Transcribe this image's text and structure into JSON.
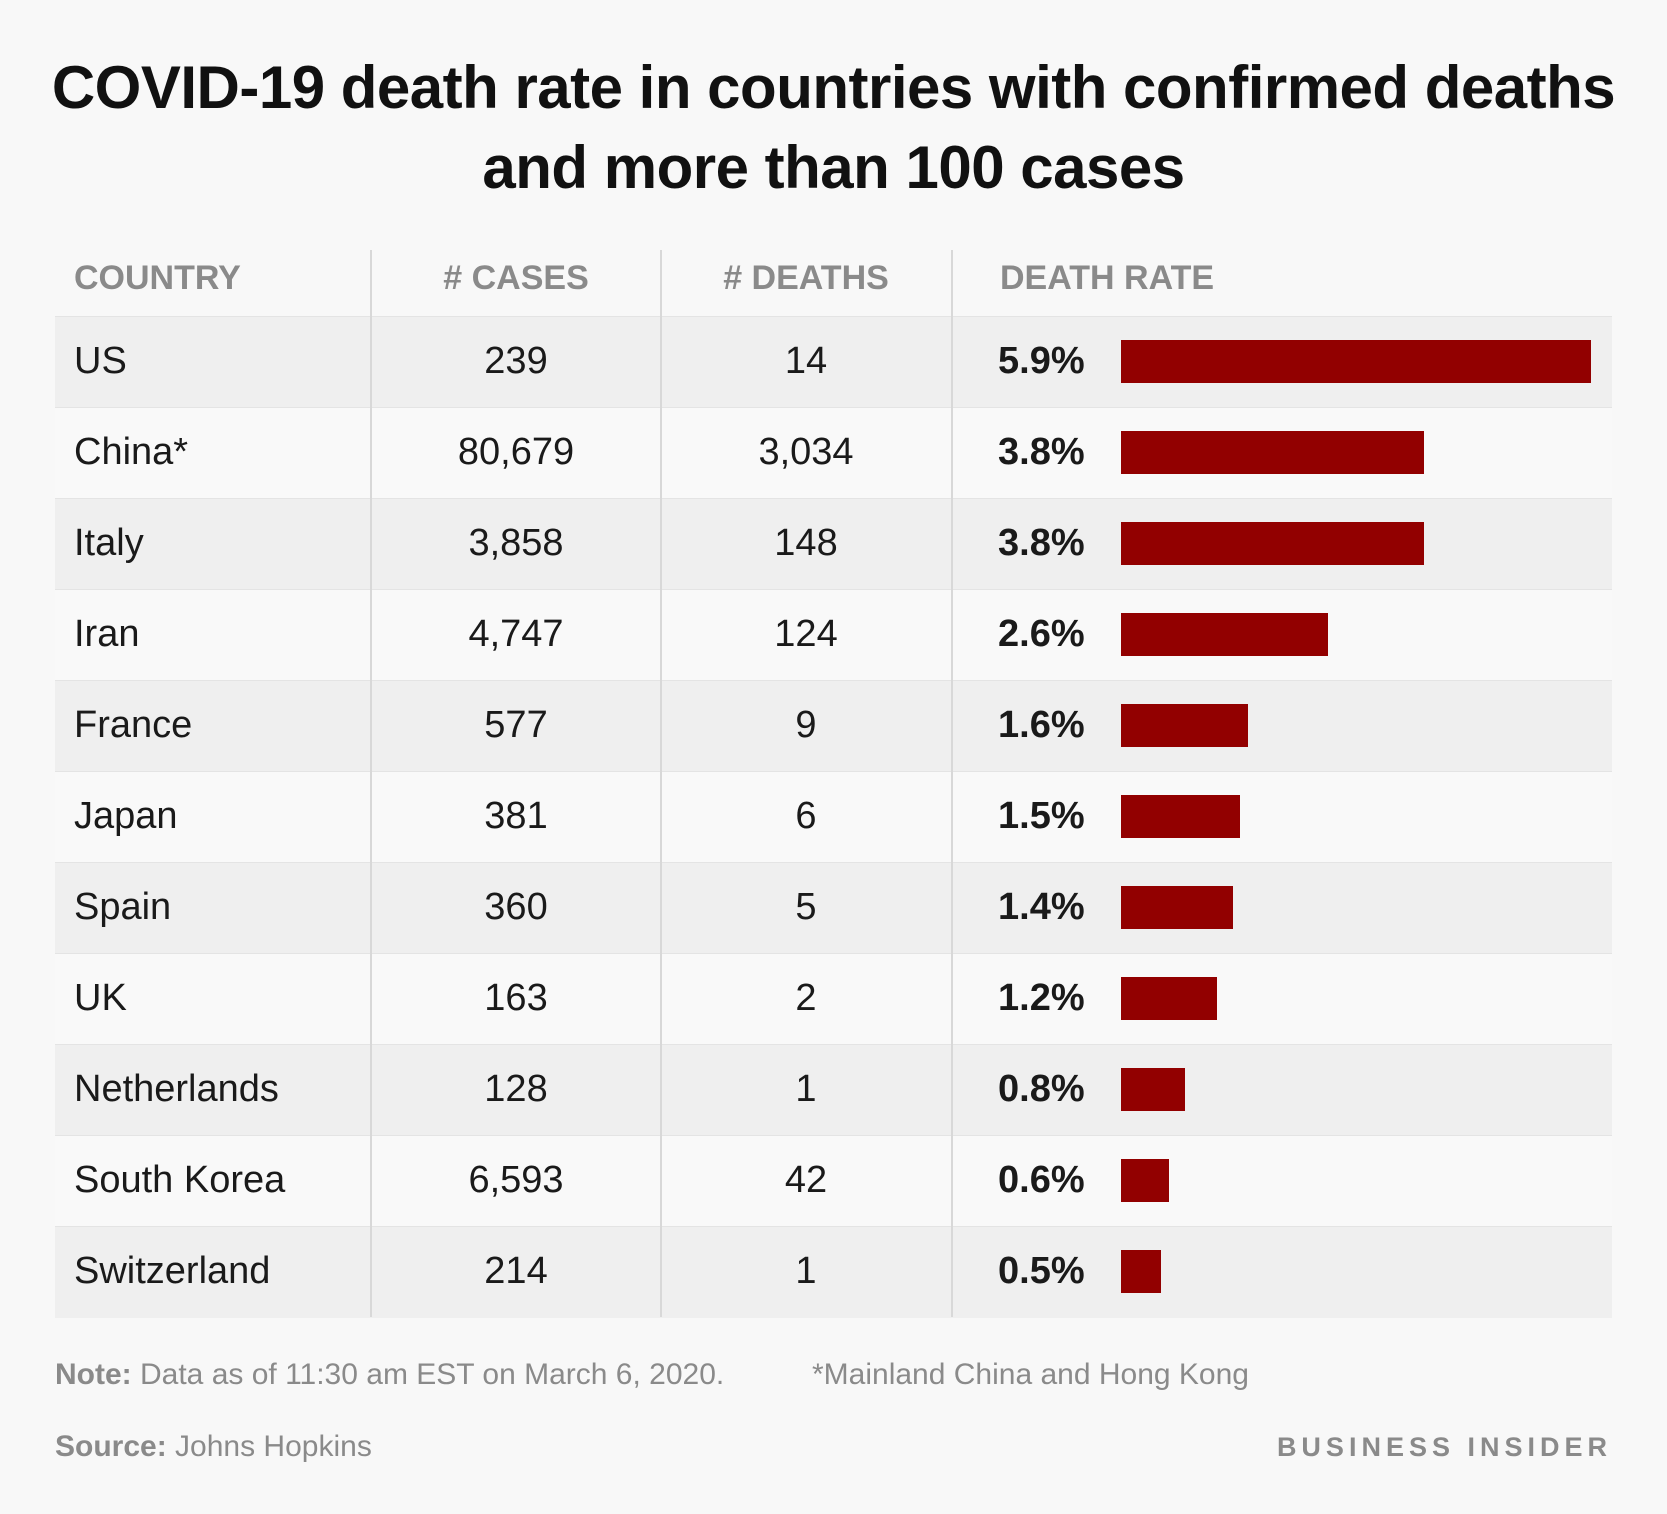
{
  "chart_data": {
    "type": "table_bar",
    "title": "COVID-19 death rate in countries with confirmed deaths and more than 100 cases",
    "columns": [
      "COUNTRY",
      "# CASES",
      "# DEATHS",
      "DEATH RATE"
    ],
    "categories": [
      "US",
      "China*",
      "Italy",
      "Iran",
      "France",
      "Japan",
      "Spain",
      "UK",
      "Netherlands",
      "South Korea",
      "Switzerland"
    ],
    "cases": [
      "239",
      "80,679",
      "3,858",
      "4,747",
      "577",
      "381",
      "360",
      "163",
      "128",
      "6,593",
      "214"
    ],
    "deaths": [
      "14",
      "3,034",
      "148",
      "124",
      "9",
      "6",
      "5",
      "2",
      "1",
      "42",
      "1"
    ],
    "values": [
      5.9,
      3.8,
      3.8,
      2.6,
      1.6,
      1.5,
      1.4,
      1.2,
      0.8,
      0.6,
      0.5
    ],
    "value_labels": [
      "5.9%",
      "3.8%",
      "3.8%",
      "2.6%",
      "1.6%",
      "1.5%",
      "1.4%",
      "1.2%",
      "0.8%",
      "0.6%",
      "0.5%"
    ],
    "color": "#920000",
    "note": {
      "label": "Note:",
      "text": "Data as of 11:30 am EST on March 6, 2020."
    },
    "footnote": "*Mainland China and Hong Kong",
    "source": {
      "label": "Source:",
      "text": "Johns Hopkins"
    },
    "brand": "BUSINESS INSIDER"
  }
}
